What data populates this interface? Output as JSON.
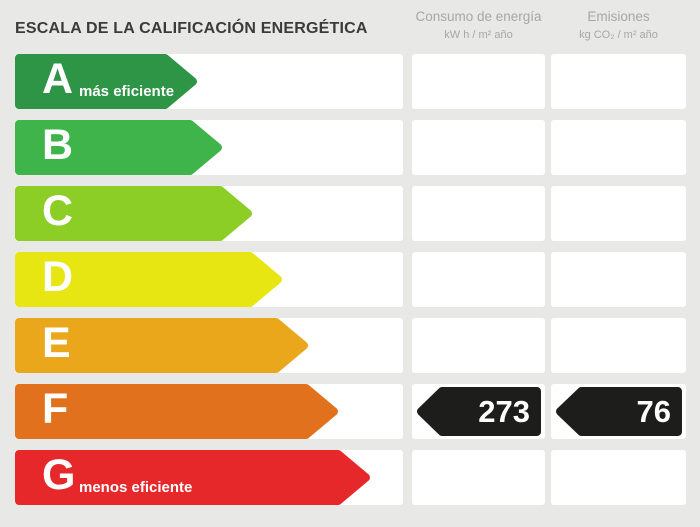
{
  "title": "ESCALA DE LA CALIFICACIÓN ENERGÉTICA",
  "columns": {
    "consumo": {
      "label": "Consumo de energía",
      "unit": "kW h / m² año"
    },
    "emisiones": {
      "label": "Emisiones",
      "unit": "kg CO₂ / m² año"
    }
  },
  "scale": {
    "ratings": [
      {
        "letter": "A",
        "note": "más eficiente",
        "color": "#2e9547",
        "arrow_width": 182
      },
      {
        "letter": "B",
        "note": "",
        "color": "#3eb44a",
        "arrow_width": 207
      },
      {
        "letter": "C",
        "note": "",
        "color": "#8ccd26",
        "arrow_width": 237
      },
      {
        "letter": "D",
        "note": "",
        "color": "#e7e613",
        "arrow_width": 267
      },
      {
        "letter": "E",
        "note": "",
        "color": "#eaa71c",
        "arrow_width": 293
      },
      {
        "letter": "F",
        "note": "",
        "color": "#e2711d",
        "arrow_width": 323
      },
      {
        "letter": "G",
        "note": "menos eficiente",
        "color": "#e7282a",
        "arrow_width": 355
      }
    ]
  },
  "result": {
    "rating": "F",
    "consumo": "273",
    "emisiones": "76",
    "badge_color": "#1d1d1b"
  },
  "theme": {
    "background": "#e8e8e6",
    "row_background": "#ffffff",
    "title_color": "#3b3b39",
    "header_text_color": "#a7a7a5"
  }
}
